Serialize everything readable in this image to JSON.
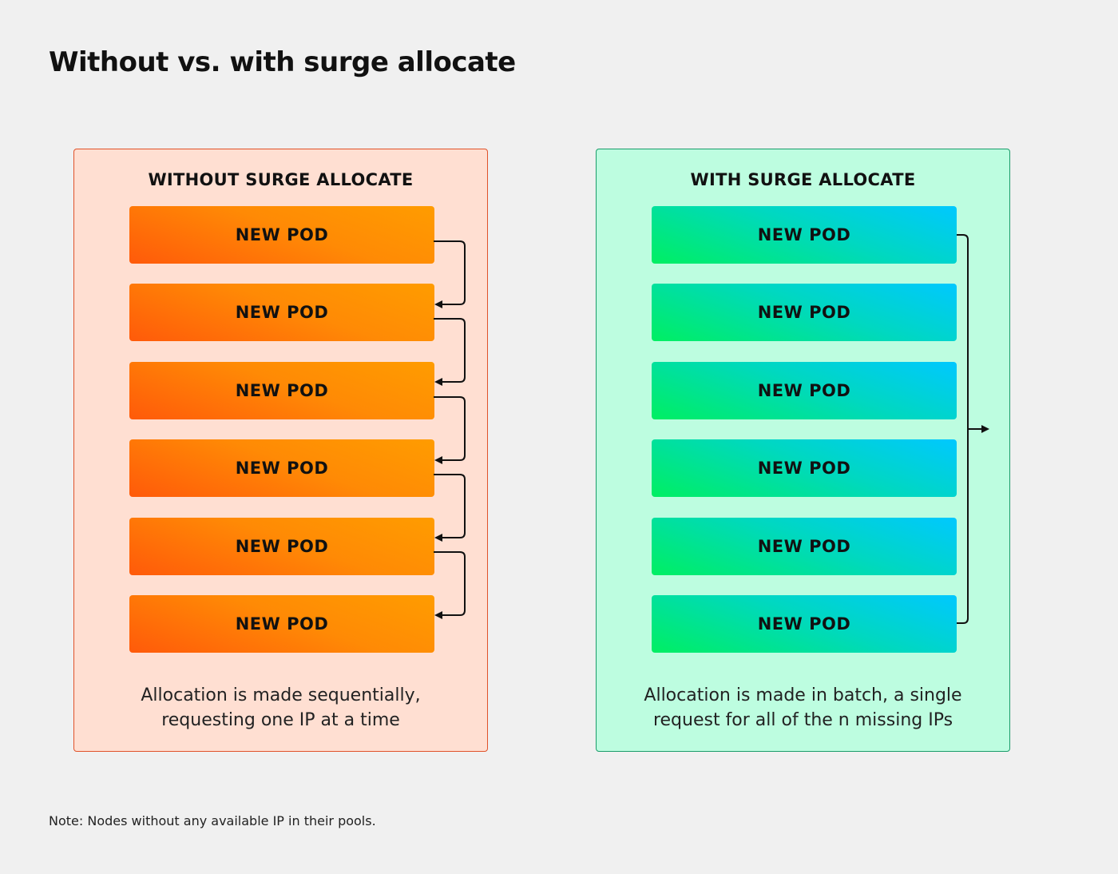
{
  "title": "Without vs. with surge allocate",
  "left_panel": {
    "heading": "WITHOUT SURGE ALLOCATE",
    "pods": [
      "NEW POD",
      "NEW POD",
      "NEW POD",
      "NEW POD",
      "NEW POD",
      "NEW POD"
    ],
    "caption_line1": "Allocation is made sequentially,",
    "caption_line2": "requesting one IP at a time",
    "color": "#ff6a00"
  },
  "right_panel": {
    "heading": "WITH SURGE ALLOCATE",
    "pods": [
      "NEW POD",
      "NEW POD",
      "NEW POD",
      "NEW POD",
      "NEW POD",
      "NEW POD"
    ],
    "caption_line1": "Allocation is made in batch, a single",
    "caption_line2": "request for all of the n missing IPs",
    "color": "#00d8c0"
  },
  "note": "Note: Nodes without any available IP in their pools."
}
